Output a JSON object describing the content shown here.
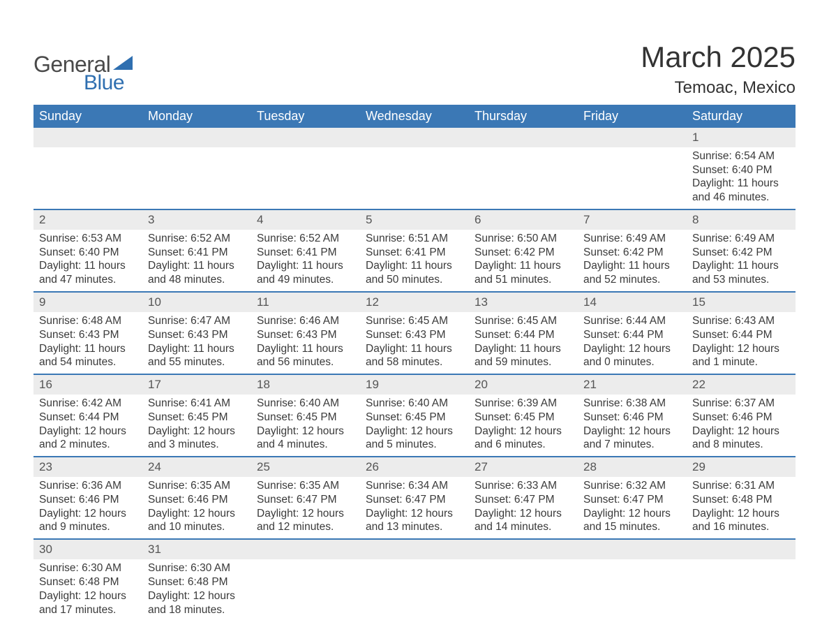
{
  "logo": {
    "text_general": "General",
    "text_blue": "Blue",
    "triangle_color": "#2f6fb0",
    "text_general_color": "#4a4a4a",
    "text_blue_color": "#2f6fb0"
  },
  "header": {
    "month_title": "March 2025",
    "location": "Temoac, Mexico",
    "title_fontsize": 42,
    "location_fontsize": 24
  },
  "colors": {
    "header_bg": "#3b78b5",
    "header_text": "#ffffff",
    "daynum_bg": "#ececec",
    "row_border": "#3b78b5",
    "body_text": "#3a3a3a",
    "page_bg": "#ffffff"
  },
  "calendar": {
    "day_headers": [
      "Sunday",
      "Monday",
      "Tuesday",
      "Wednesday",
      "Thursday",
      "Friday",
      "Saturday"
    ],
    "weeks": [
      {
        "days": [
          null,
          null,
          null,
          null,
          null,
          null,
          {
            "n": "1",
            "sr": "Sunrise: 6:54 AM",
            "ss": "Sunset: 6:40 PM",
            "d1": "Daylight: 11 hours",
            "d2": "and 46 minutes."
          }
        ]
      },
      {
        "days": [
          {
            "n": "2",
            "sr": "Sunrise: 6:53 AM",
            "ss": "Sunset: 6:40 PM",
            "d1": "Daylight: 11 hours",
            "d2": "and 47 minutes."
          },
          {
            "n": "3",
            "sr": "Sunrise: 6:52 AM",
            "ss": "Sunset: 6:41 PM",
            "d1": "Daylight: 11 hours",
            "d2": "and 48 minutes."
          },
          {
            "n": "4",
            "sr": "Sunrise: 6:52 AM",
            "ss": "Sunset: 6:41 PM",
            "d1": "Daylight: 11 hours",
            "d2": "and 49 minutes."
          },
          {
            "n": "5",
            "sr": "Sunrise: 6:51 AM",
            "ss": "Sunset: 6:41 PM",
            "d1": "Daylight: 11 hours",
            "d2": "and 50 minutes."
          },
          {
            "n": "6",
            "sr": "Sunrise: 6:50 AM",
            "ss": "Sunset: 6:42 PM",
            "d1": "Daylight: 11 hours",
            "d2": "and 51 minutes."
          },
          {
            "n": "7",
            "sr": "Sunrise: 6:49 AM",
            "ss": "Sunset: 6:42 PM",
            "d1": "Daylight: 11 hours",
            "d2": "and 52 minutes."
          },
          {
            "n": "8",
            "sr": "Sunrise: 6:49 AM",
            "ss": "Sunset: 6:42 PM",
            "d1": "Daylight: 11 hours",
            "d2": "and 53 minutes."
          }
        ]
      },
      {
        "days": [
          {
            "n": "9",
            "sr": "Sunrise: 6:48 AM",
            "ss": "Sunset: 6:43 PM",
            "d1": "Daylight: 11 hours",
            "d2": "and 54 minutes."
          },
          {
            "n": "10",
            "sr": "Sunrise: 6:47 AM",
            "ss": "Sunset: 6:43 PM",
            "d1": "Daylight: 11 hours",
            "d2": "and 55 minutes."
          },
          {
            "n": "11",
            "sr": "Sunrise: 6:46 AM",
            "ss": "Sunset: 6:43 PM",
            "d1": "Daylight: 11 hours",
            "d2": "and 56 minutes."
          },
          {
            "n": "12",
            "sr": "Sunrise: 6:45 AM",
            "ss": "Sunset: 6:43 PM",
            "d1": "Daylight: 11 hours",
            "d2": "and 58 minutes."
          },
          {
            "n": "13",
            "sr": "Sunrise: 6:45 AM",
            "ss": "Sunset: 6:44 PM",
            "d1": "Daylight: 11 hours",
            "d2": "and 59 minutes."
          },
          {
            "n": "14",
            "sr": "Sunrise: 6:44 AM",
            "ss": "Sunset: 6:44 PM",
            "d1": "Daylight: 12 hours",
            "d2": "and 0 minutes."
          },
          {
            "n": "15",
            "sr": "Sunrise: 6:43 AM",
            "ss": "Sunset: 6:44 PM",
            "d1": "Daylight: 12 hours",
            "d2": "and 1 minute."
          }
        ]
      },
      {
        "days": [
          {
            "n": "16",
            "sr": "Sunrise: 6:42 AM",
            "ss": "Sunset: 6:44 PM",
            "d1": "Daylight: 12 hours",
            "d2": "and 2 minutes."
          },
          {
            "n": "17",
            "sr": "Sunrise: 6:41 AM",
            "ss": "Sunset: 6:45 PM",
            "d1": "Daylight: 12 hours",
            "d2": "and 3 minutes."
          },
          {
            "n": "18",
            "sr": "Sunrise: 6:40 AM",
            "ss": "Sunset: 6:45 PM",
            "d1": "Daylight: 12 hours",
            "d2": "and 4 minutes."
          },
          {
            "n": "19",
            "sr": "Sunrise: 6:40 AM",
            "ss": "Sunset: 6:45 PM",
            "d1": "Daylight: 12 hours",
            "d2": "and 5 minutes."
          },
          {
            "n": "20",
            "sr": "Sunrise: 6:39 AM",
            "ss": "Sunset: 6:45 PM",
            "d1": "Daylight: 12 hours",
            "d2": "and 6 minutes."
          },
          {
            "n": "21",
            "sr": "Sunrise: 6:38 AM",
            "ss": "Sunset: 6:46 PM",
            "d1": "Daylight: 12 hours",
            "d2": "and 7 minutes."
          },
          {
            "n": "22",
            "sr": "Sunrise: 6:37 AM",
            "ss": "Sunset: 6:46 PM",
            "d1": "Daylight: 12 hours",
            "d2": "and 8 minutes."
          }
        ]
      },
      {
        "days": [
          {
            "n": "23",
            "sr": "Sunrise: 6:36 AM",
            "ss": "Sunset: 6:46 PM",
            "d1": "Daylight: 12 hours",
            "d2": "and 9 minutes."
          },
          {
            "n": "24",
            "sr": "Sunrise: 6:35 AM",
            "ss": "Sunset: 6:46 PM",
            "d1": "Daylight: 12 hours",
            "d2": "and 10 minutes."
          },
          {
            "n": "25",
            "sr": "Sunrise: 6:35 AM",
            "ss": "Sunset: 6:47 PM",
            "d1": "Daylight: 12 hours",
            "d2": "and 12 minutes."
          },
          {
            "n": "26",
            "sr": "Sunrise: 6:34 AM",
            "ss": "Sunset: 6:47 PM",
            "d1": "Daylight: 12 hours",
            "d2": "and 13 minutes."
          },
          {
            "n": "27",
            "sr": "Sunrise: 6:33 AM",
            "ss": "Sunset: 6:47 PM",
            "d1": "Daylight: 12 hours",
            "d2": "and 14 minutes."
          },
          {
            "n": "28",
            "sr": "Sunrise: 6:32 AM",
            "ss": "Sunset: 6:47 PM",
            "d1": "Daylight: 12 hours",
            "d2": "and 15 minutes."
          },
          {
            "n": "29",
            "sr": "Sunrise: 6:31 AM",
            "ss": "Sunset: 6:48 PM",
            "d1": "Daylight: 12 hours",
            "d2": "and 16 minutes."
          }
        ]
      },
      {
        "days": [
          {
            "n": "30",
            "sr": "Sunrise: 6:30 AM",
            "ss": "Sunset: 6:48 PM",
            "d1": "Daylight: 12 hours",
            "d2": "and 17 minutes."
          },
          {
            "n": "31",
            "sr": "Sunrise: 6:30 AM",
            "ss": "Sunset: 6:48 PM",
            "d1": "Daylight: 12 hours",
            "d2": "and 18 minutes."
          },
          null,
          null,
          null,
          null,
          null
        ]
      }
    ]
  }
}
